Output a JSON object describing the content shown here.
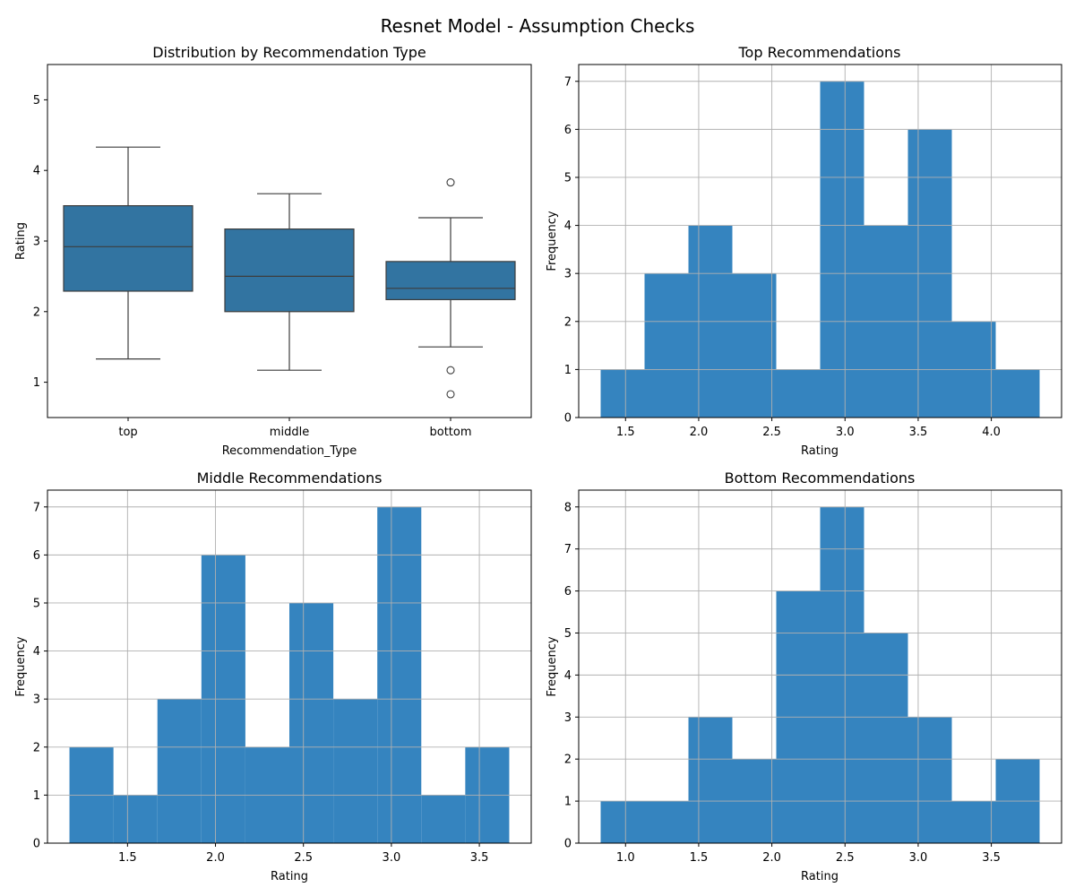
{
  "figure": {
    "title": "Resnet Model - Assumption Checks"
  },
  "colors": {
    "box": "#3274a1",
    "hist": "#3584bf",
    "line": "#3d3d3d",
    "grid": "#b0b0b0"
  },
  "chart_data": [
    {
      "type": "box",
      "title": "Distribution by Recommendation Type",
      "xlabel": "Recommendation_Type",
      "ylabel": "Rating",
      "categories": [
        "top",
        "middle",
        "bottom"
      ],
      "ylim": [
        0.5,
        5.5
      ],
      "yticks": [
        1,
        2,
        3,
        4,
        5
      ],
      "boxes": [
        {
          "name": "top",
          "whisker_low": 1.33,
          "q1": 2.29,
          "median": 2.92,
          "q3": 3.5,
          "whisker_high": 4.33,
          "outliers": []
        },
        {
          "name": "middle",
          "whisker_low": 1.17,
          "q1": 2.0,
          "median": 2.5,
          "q3": 3.17,
          "whisker_high": 3.67,
          "outliers": []
        },
        {
          "name": "bottom",
          "whisker_low": 1.5,
          "q1": 2.17,
          "median": 2.33,
          "q3": 2.71,
          "whisker_high": 3.33,
          "outliers": [
            3.83,
            1.17,
            0.83
          ]
        }
      ],
      "grid": false
    },
    {
      "type": "histogram",
      "title": "Top Recommendations",
      "xlabel": "Rating",
      "ylabel": "Frequency",
      "bins": [
        1.33,
        1.63,
        1.93,
        2.23,
        2.53,
        2.83,
        3.13,
        3.43,
        3.73,
        4.03,
        4.33
      ],
      "counts": [
        1,
        3,
        4,
        3,
        1,
        7,
        4,
        6,
        2,
        1
      ],
      "xlim": [
        1.18,
        4.48
      ],
      "ylim": [
        0,
        7.35
      ],
      "xticks": [
        "1.5",
        "2.0",
        "2.5",
        "3.0",
        "3.5",
        "4.0"
      ],
      "yticks": [
        0,
        1,
        2,
        3,
        4,
        5,
        6,
        7
      ],
      "grid": true
    },
    {
      "type": "histogram",
      "title": "Middle Recommendations",
      "xlabel": "Rating",
      "ylabel": "Frequency",
      "bins": [
        1.17,
        1.42,
        1.67,
        1.92,
        2.17,
        2.42,
        2.67,
        2.92,
        3.17,
        3.42,
        3.67
      ],
      "counts": [
        2,
        1,
        3,
        6,
        2,
        5,
        3,
        7,
        1,
        2
      ],
      "xlim": [
        1.045,
        3.795
      ],
      "ylim": [
        0,
        7.35
      ],
      "xticks": [
        "1.5",
        "2.0",
        "2.5",
        "3.0",
        "3.5"
      ],
      "yticks": [
        0,
        1,
        2,
        3,
        4,
        5,
        6,
        7
      ],
      "grid": true
    },
    {
      "type": "histogram",
      "title": "Bottom Recommendations",
      "xlabel": "Rating",
      "ylabel": "Frequency",
      "bins": [
        0.83,
        1.13,
        1.43,
        1.73,
        2.03,
        2.33,
        2.63,
        2.93,
        3.23,
        3.53,
        3.83
      ],
      "counts": [
        1,
        1,
        3,
        2,
        6,
        8,
        5,
        3,
        1,
        2
      ],
      "xlim": [
        0.68,
        3.98
      ],
      "ylim": [
        0,
        8.4
      ],
      "xticks": [
        "1.0",
        "1.5",
        "2.0",
        "2.5",
        "3.0",
        "3.5"
      ],
      "yticks": [
        0,
        1,
        2,
        3,
        4,
        5,
        6,
        7,
        8
      ],
      "grid": true
    }
  ]
}
